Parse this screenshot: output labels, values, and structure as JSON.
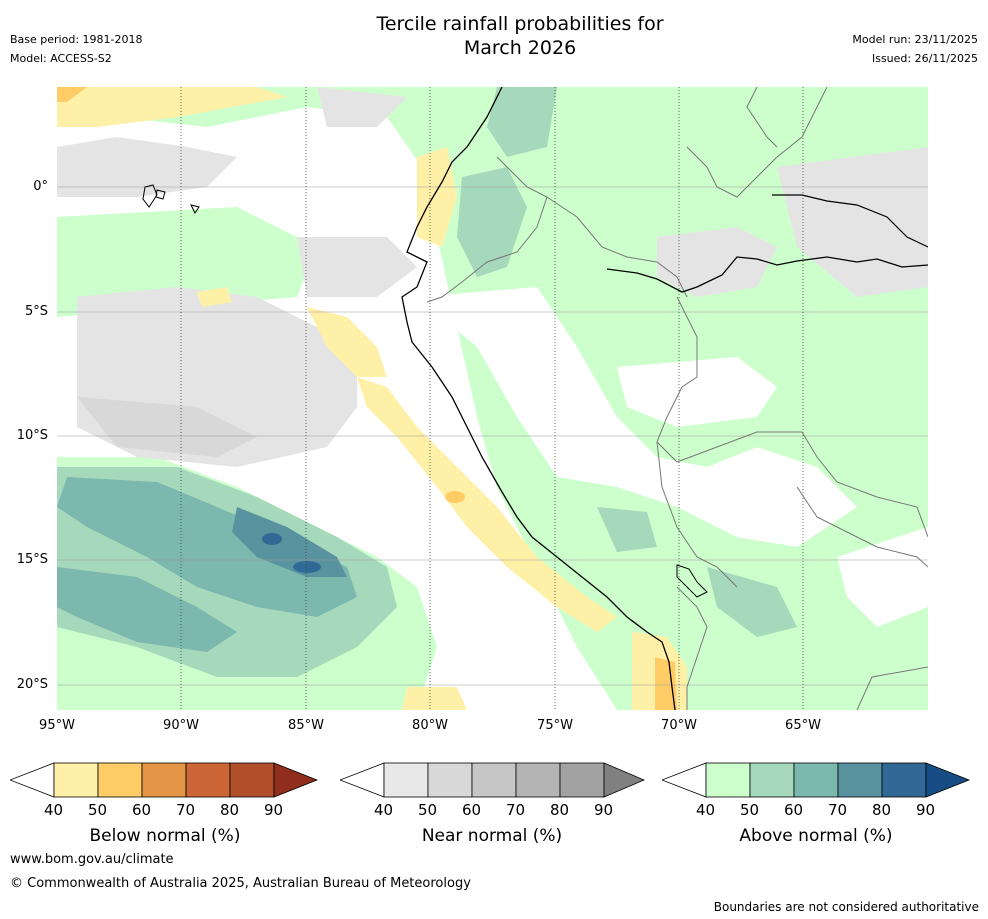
{
  "header": {
    "title_line1": "Tercile rainfall probabilities for",
    "title_line2": "March 2026",
    "base_period": "Base period: 1981-2018",
    "model": "Model: ACCESS-S2",
    "model_run": "Model run: 23/11/2025",
    "issued": "Issued: 26/11/2025"
  },
  "map": {
    "latitude_labels": [
      "0°",
      "5°S",
      "10°S",
      "15°S",
      "20°S"
    ],
    "longitude_labels": [
      "95°W",
      "90°W",
      "85°W",
      "80°W",
      "75°W",
      "70°W",
      "65°W"
    ]
  },
  "legends": {
    "below": {
      "title": "Below normal (%)",
      "ticks": [
        "40",
        "50",
        "60",
        "70",
        "80",
        "90"
      ],
      "colors": [
        "#ffffff",
        "#fff0a8",
        "#ffcc66",
        "#e49646",
        "#cd6637",
        "#b04f2a",
        "#902d1c"
      ]
    },
    "near": {
      "title": "Near normal (%)",
      "ticks": [
        "40",
        "50",
        "60",
        "70",
        "80",
        "90"
      ],
      "colors": [
        "#ffffff",
        "#e8e8e8",
        "#d8d8d8",
        "#c6c6c6",
        "#b4b4b4",
        "#a2a2a2",
        "#808080"
      ]
    },
    "above": {
      "title": "Above normal (%)",
      "ticks": [
        "40",
        "50",
        "60",
        "70",
        "80",
        "90"
      ],
      "colors": [
        "#ffffff",
        "#ccffcc",
        "#a6d8bc",
        "#7cb8ae",
        "#5a93a0",
        "#316996",
        "#174d84"
      ]
    }
  },
  "footer": {
    "website": "www.bom.gov.au/climate",
    "copyright": "© Commonwealth of Australia 2025, Australian Bureau of Meteorology",
    "disclaimer": "Boundaries are not considered authoritative"
  }
}
